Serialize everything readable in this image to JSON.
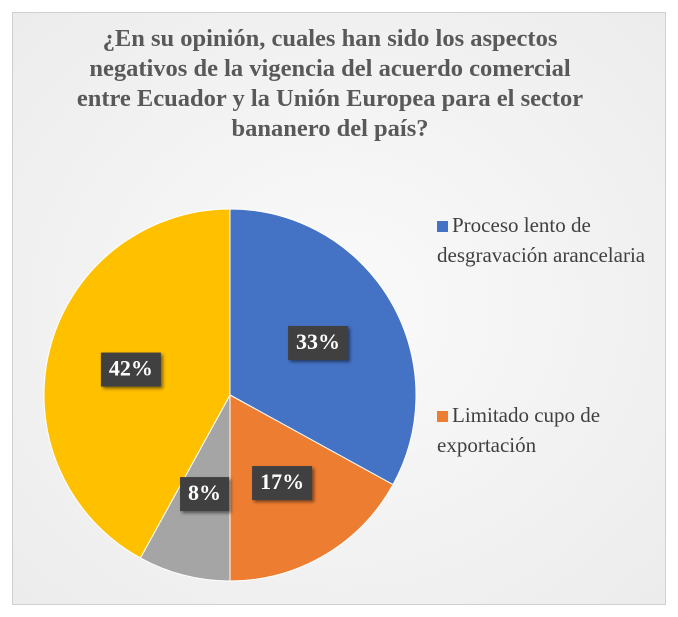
{
  "chart_data": {
    "type": "pie",
    "title": "¿En su opinión, cuales han sido los aspectos negativos de la vigencia del acuerdo comercial entre Ecuador y la Unión Europea para el sector bananero del país?",
    "categories": [
      "Proceso lento de desgravación arancelaria",
      "Limitado cupo de exportación",
      null,
      null
    ],
    "values": [
      33,
      17,
      8,
      42
    ],
    "value_labels": [
      "33%",
      "17%",
      "8%",
      "42%"
    ],
    "colors": [
      "#4472c4",
      "#ed7d31",
      "#a5a5a5",
      "#ffc000"
    ],
    "legend": "right"
  }
}
